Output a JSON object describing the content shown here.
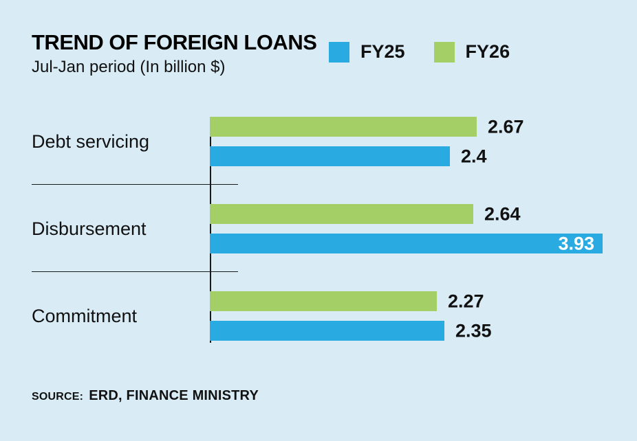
{
  "header": {
    "title": "TREND OF FOREIGN LOANS",
    "subtitle": "Jul-Jan period (In billion $)"
  },
  "legend": [
    {
      "label": "FY25",
      "color": "#29abe2"
    },
    {
      "label": "FY26",
      "color": "#a4ce66"
    }
  ],
  "source": {
    "prefix": "SOURCE:",
    "text": "ERD, FINANCE MINISTRY"
  },
  "chart_data": {
    "type": "bar",
    "orientation": "horizontal",
    "title": "TREND OF FOREIGN LOANS",
    "subtitle": "Jul-Jan period (In billion $)",
    "unit": "billion $",
    "categories": [
      "Debt servicing",
      "Disbursement",
      "Commitment"
    ],
    "series": [
      {
        "name": "FY26",
        "color": "#a4ce66",
        "values": [
          2.67,
          2.64,
          2.27
        ]
      },
      {
        "name": "FY25",
        "color": "#29abe2",
        "values": [
          2.4,
          3.93,
          2.35
        ]
      }
    ],
    "legend_order": [
      "FY25",
      "FY26"
    ],
    "bar_draw_order_per_group": [
      "FY26",
      "FY25"
    ],
    "xlim": [
      0,
      4.0
    ],
    "value_labels": true,
    "grid": false,
    "legend_position": "top-right",
    "colors": {
      "FY25": "#29abe2",
      "FY26": "#a4ce66",
      "background": "#d9ecf6"
    }
  }
}
